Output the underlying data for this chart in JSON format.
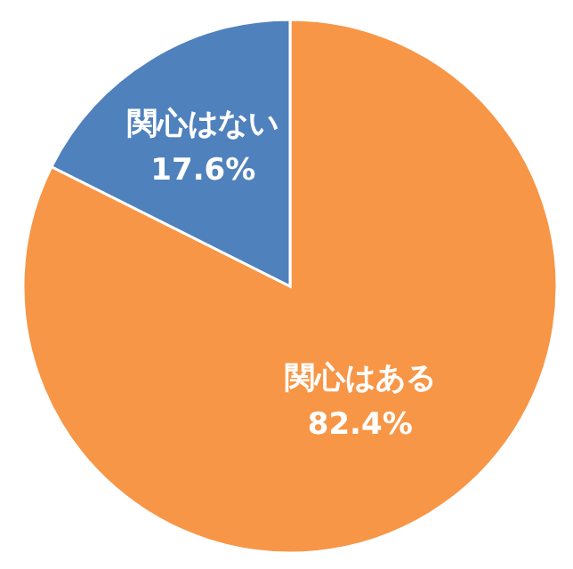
{
  "chart_data": {
    "type": "pie",
    "categories": [
      "関心はある",
      "関心はない"
    ],
    "values": [
      82.4,
      17.6
    ],
    "value_labels": [
      "82.4%",
      "17.6%"
    ],
    "colors": [
      "#f79646",
      "#4f81bd"
    ]
  }
}
